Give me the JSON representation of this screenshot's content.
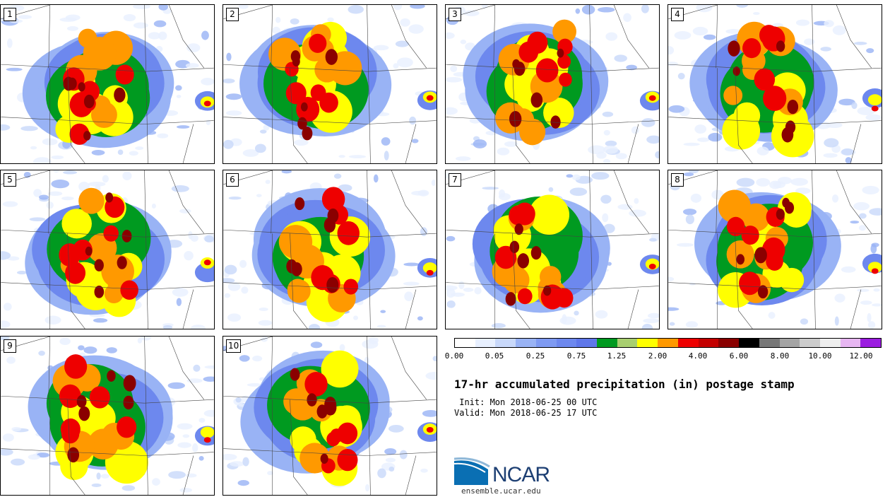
{
  "panels": [
    {
      "label": "1",
      "seed": 11
    },
    {
      "label": "2",
      "seed": 23
    },
    {
      "label": "3",
      "seed": 37
    },
    {
      "label": "4",
      "seed": 41
    },
    {
      "label": "5",
      "seed": 53
    },
    {
      "label": "6",
      "seed": 67
    },
    {
      "label": "7",
      "seed": 71
    },
    {
      "label": "8",
      "seed": 83
    },
    {
      "label": "9",
      "seed": 97
    },
    {
      "label": "10",
      "seed": 109
    }
  ],
  "colorbar": {
    "colors": [
      "#ffffff",
      "#e8f0ff",
      "#c8d8fa",
      "#99b3f5",
      "#7e9af2",
      "#6d88ee",
      "#5f77ea",
      "#009a20",
      "#a8cf6f",
      "#ffff00",
      "#ff9900",
      "#ee0000",
      "#c40000",
      "#8a0000",
      "#000000",
      "#777777",
      "#a4a4a4",
      "#cccccc",
      "#eeeeee",
      "#e7b6f2",
      "#9b1de0"
    ],
    "labels": [
      "0.00",
      "0.05",
      "0.25",
      "0.75",
      "1.25",
      "2.00",
      "4.00",
      "6.00",
      "8.00",
      "10.00",
      "12.00"
    ]
  },
  "title": "17-hr accumulated precipitation (in) postage stamp",
  "init": " Init: Mon 2018-06-25 00 UTC",
  "valid": "Valid: Mon 2018-06-25 17 UTC",
  "logo": {
    "text": "NCAR",
    "url": "ensemble.ucar.edu",
    "color": "#1d3f73"
  }
}
